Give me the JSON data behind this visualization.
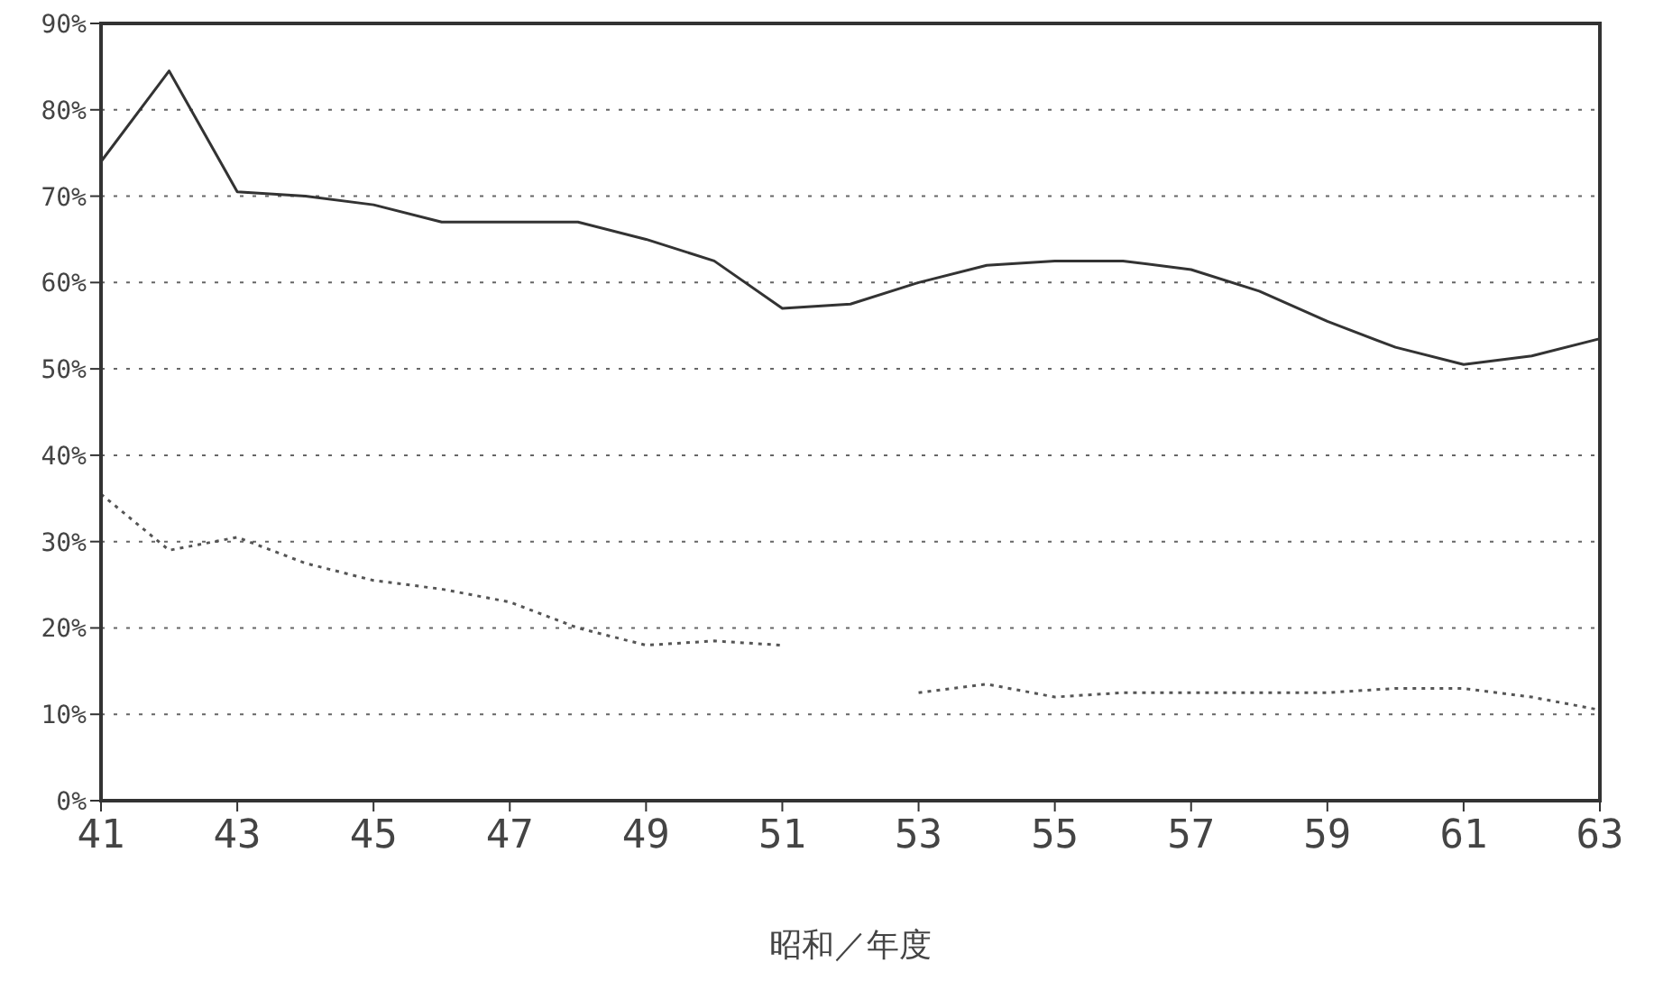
{
  "chart_data": {
    "type": "line",
    "xlabel": "昭和／年度",
    "x": [
      41,
      42,
      43,
      44,
      45,
      46,
      47,
      48,
      49,
      50,
      51,
      52,
      53,
      54,
      55,
      56,
      57,
      58,
      59,
      60,
      61,
      62,
      63
    ],
    "series": [
      {
        "color": "#333333",
        "line_style": "solid",
        "values": [
          74,
          84.5,
          70.5,
          70,
          69,
          67,
          67,
          67,
          65,
          62.5,
          57,
          57.5,
          60,
          62,
          62.5,
          62.5,
          61.5,
          59,
          55.5,
          52.5,
          50.5,
          51.5,
          53.5
        ]
      },
      {
        "color": "#555555",
        "line_style": "dotted",
        "values": [
          35.5,
          29,
          30.5,
          27.5,
          25.5,
          24.5,
          23,
          20,
          18,
          18.5,
          18,
          null,
          12.5,
          13.5,
          12,
          12.5,
          12.5,
          12.5,
          12.5,
          13,
          13,
          12,
          10.5
        ]
      }
    ],
    "xlim": [
      41,
      63
    ],
    "xticks": [
      41,
      43,
      45,
      47,
      49,
      51,
      53,
      55,
      57,
      59,
      61,
      63
    ],
    "ylim": [
      0,
      90
    ],
    "yticks": [
      {
        "value": 0,
        "label": "0%"
      },
      {
        "value": 10,
        "label": "10%"
      },
      {
        "value": 20,
        "label": "20%"
      },
      {
        "value": 30,
        "label": "30%"
      },
      {
        "value": 40,
        "label": "40%"
      },
      {
        "value": 50,
        "label": "50%"
      },
      {
        "value": 60,
        "label": "60%"
      },
      {
        "value": 70,
        "label": "70%"
      },
      {
        "value": 80,
        "label": "80%"
      },
      {
        "value": 90,
        "label": "90%"
      }
    ],
    "grid": "y"
  }
}
